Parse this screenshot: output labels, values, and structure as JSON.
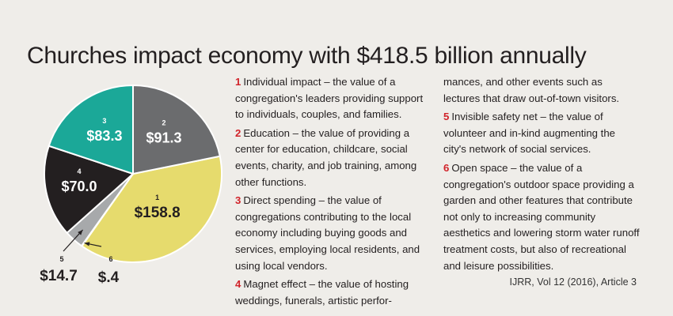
{
  "title": "Churches impact economy with $418.5 billion annually",
  "chart_data": {
    "type": "pie",
    "title": "Churches impact economy with $418.5 billion annually",
    "unit": "$ billion",
    "total": 418.5,
    "slices": [
      {
        "id": "1",
        "value": 158.8,
        "label": "$158.8",
        "color": "#e6db6d"
      },
      {
        "id": "6",
        "value": 0.4,
        "label": "$.4",
        "color": "#d6302a"
      },
      {
        "id": "5",
        "value": 14.7,
        "label": "$14.7",
        "color": "#a7a9ab"
      },
      {
        "id": "4",
        "value": 70.0,
        "label": "$70.0",
        "color": "#231f20"
      },
      {
        "id": "3",
        "value": 83.3,
        "label": "$83.3",
        "color": "#1ba898"
      },
      {
        "id": "2",
        "value": 91.3,
        "label": "$91.3",
        "color": "#6b6c6e"
      }
    ]
  },
  "legend": [
    {
      "num": "1",
      "text": "Individual impact – the value of a congregation's leaders providing support to individuals, couples, and families."
    },
    {
      "num": "2",
      "text": "Education – the value of providing a center for education, childcare, social events, charity, and job training, among other functions."
    },
    {
      "num": "3",
      "text": "Direct spending – the value of congregations contributing to the local economy including buying goods and services, employing local residents, and using local vendors."
    },
    {
      "num": "4",
      "text": "Magnet effect – the value of hosting weddings, funerals, artistic performances, and other events such as lectures that draw out-of-town visitors."
    },
    {
      "num": "5",
      "text": "Invisible safety net – the value of volunteer and in-kind augmenting the city's network of social services."
    },
    {
      "num": "6",
      "text": "Open space – the value of a congregation's outdoor space providing a garden and other features that contribute not only to increasing community aesthetics and lowering storm water runoff treatment costs, but also of recreational and leisure possibilities."
    }
  ],
  "legend_layout": {
    "col1_items": [
      "1",
      "2",
      "3"
    ],
    "split_item_col1": "Magnet effect – the value of hosting weddings, funerals, artistic perfor-",
    "split_item_col2": "mances, and other events such as lectures that draw out-of-town visitors.",
    "col2_items": [
      "5",
      "6"
    ]
  },
  "citation": "IJRR, Vol 12 (2016), Article 3"
}
